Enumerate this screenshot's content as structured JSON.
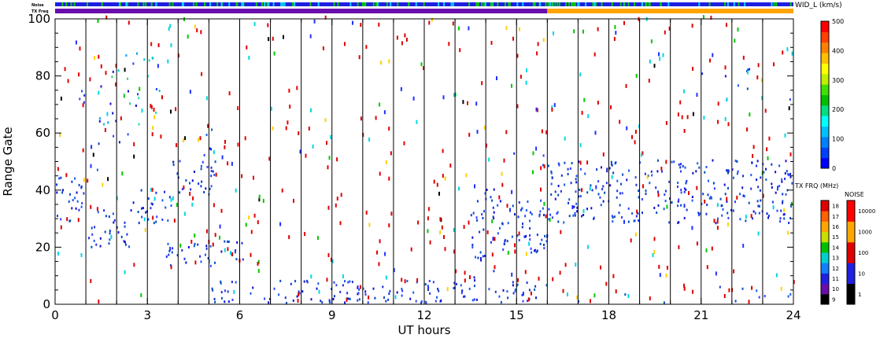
{
  "chart_data": {
    "type": "heatmap",
    "xlabel": "UT hours",
    "ylabel": "Range Gate",
    "xlim": [
      0,
      24
    ],
    "ylim": [
      0,
      100
    ],
    "x_ticks": [
      "0",
      "3",
      "6",
      "9",
      "12",
      "15",
      "18",
      "21",
      "24"
    ],
    "y_ticks": [
      "0",
      "20",
      "40",
      "60",
      "80",
      "100"
    ],
    "top_strips": {
      "noise_label": "Noise",
      "txfreq_label": "TX Freq"
    },
    "vertical_marker_hours": [
      1,
      2,
      3,
      4,
      5,
      6,
      7,
      8,
      9,
      10,
      11,
      12,
      13,
      14,
      15,
      16,
      17,
      18,
      19,
      20,
      21,
      22,
      23
    ],
    "txfreq_strip_segments": [
      {
        "from": 0,
        "to": 16,
        "color": "#6a0dad"
      },
      {
        "from": 16,
        "to": 24,
        "color": "#ffa500"
      }
    ],
    "colorbar_velocity_width": {
      "title": "WID_L (km/s)",
      "ticks": [
        "0",
        "100",
        "200",
        "300",
        "400",
        "500"
      ],
      "range": [
        0,
        500
      ]
    },
    "colorbar_tx_freq": {
      "title": "TX FRQ (MHz)",
      "ticks": [
        "9",
        "10",
        "11",
        "12",
        "13",
        "14",
        "15",
        "16",
        "17",
        "18"
      ]
    },
    "colorbar_noise": {
      "title": "NOISE",
      "ticks": [
        "1",
        "10",
        "100",
        "1000",
        "10000"
      ]
    },
    "clusters": [
      {
        "x0": 0.0,
        "x1": 1.05,
        "y0": 28,
        "y1": 44,
        "kind": "dense"
      },
      {
        "x0": 1.05,
        "x1": 2.5,
        "y0": 19,
        "y1": 33,
        "kind": "dense"
      },
      {
        "x0": 2.5,
        "x1": 3.8,
        "y0": 28,
        "y1": 40,
        "kind": "dense"
      },
      {
        "x0": 3.8,
        "x1": 5.2,
        "y0": 36,
        "y1": 50,
        "kind": "dense"
      },
      {
        "x0": 4.8,
        "x1": 5.2,
        "y0": 48,
        "y1": 62,
        "kind": "medium"
      },
      {
        "x0": 3.6,
        "x1": 5.3,
        "y0": 12,
        "y1": 21,
        "kind": "dense"
      },
      {
        "x0": 5.3,
        "x1": 6.4,
        "y0": 15,
        "y1": 26,
        "kind": "medium"
      },
      {
        "x0": 0.3,
        "x1": 1.0,
        "y0": 70,
        "y1": 95,
        "kind": "sparse"
      },
      {
        "x0": 1.4,
        "x1": 3.6,
        "y0": 62,
        "y1": 88,
        "kind": "mixed"
      },
      {
        "x0": 1.1,
        "x1": 2.4,
        "y0": 44,
        "y1": 62,
        "kind": "sparse"
      },
      {
        "x0": 5.0,
        "x1": 16.0,
        "y0": 0,
        "y1": 8,
        "kind": "dense"
      },
      {
        "x0": 13.5,
        "x1": 16.0,
        "y0": 17,
        "y1": 36,
        "kind": "dense"
      },
      {
        "x0": 13.5,
        "x1": 14.5,
        "y0": 6,
        "y1": 18,
        "kind": "medium"
      },
      {
        "x0": 13.8,
        "x1": 14.3,
        "y0": 36,
        "y1": 46,
        "kind": "medium"
      },
      {
        "x0": 14.5,
        "x1": 16.0,
        "y0": 48,
        "y1": 56,
        "kind": "sparse"
      },
      {
        "x0": 16.0,
        "x1": 24.0,
        "y0": 28,
        "y1": 50,
        "kind": "dense"
      },
      {
        "x0": 21.0,
        "x1": 24.0,
        "y0": 68,
        "y1": 82,
        "kind": "sparse"
      },
      {
        "x0": 16.0,
        "x1": 24.0,
        "y0": 0,
        "y1": 6,
        "kind": "sparse"
      },
      {
        "x0": 0.0,
        "x1": 24.0,
        "y0": 0,
        "y1": 100,
        "kind": "noise"
      }
    ]
  }
}
